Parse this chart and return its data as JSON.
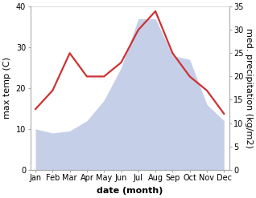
{
  "months": [
    "Jan",
    "Feb",
    "Mar",
    "Apr",
    "May",
    "Jun",
    "Jul",
    "Aug",
    "Sep",
    "Oct",
    "Nov",
    "Dec"
  ],
  "max_temp": [
    10,
    9,
    9.5,
    12,
    17,
    25,
    37,
    37,
    28,
    27,
    16,
    12
  ],
  "precipitation": [
    13,
    17,
    25,
    20,
    20,
    23,
    30,
    34,
    25,
    20,
    17,
    12
  ],
  "temp_color": "#c5cfe8",
  "precip_color": "#cc3333",
  "temp_fill_alpha": 1.0,
  "ylabel_left": "max temp (C)",
  "ylabel_right": "med. precipitation (kg/m2)",
  "xlabel": "date (month)",
  "ylim_left": [
    0,
    40
  ],
  "ylim_right": [
    0,
    35
  ],
  "yticks_left": [
    0,
    10,
    20,
    30,
    40
  ],
  "yticks_right": [
    0,
    5,
    10,
    15,
    20,
    25,
    30,
    35
  ],
  "axis_fontsize": 7.5,
  "tick_fontsize": 7,
  "label_fontsize": 8,
  "precip_linewidth": 1.6
}
